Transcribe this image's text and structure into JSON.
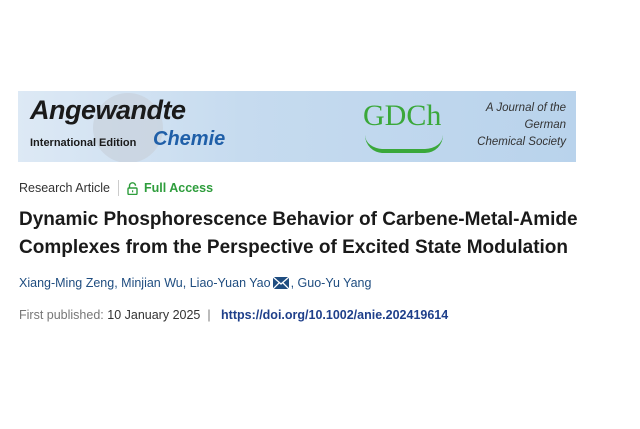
{
  "banner": {
    "journal_name": "Angewandte",
    "edition": "International Edition",
    "journal_sub": "Chemie",
    "society_logo": "GDCh",
    "society_lines": [
      "A Journal of the",
      "German",
      "Chemical Society"
    ]
  },
  "article": {
    "type": "Research Article",
    "access_icon": "lock-open-icon",
    "access": "Full Access",
    "title": "Dynamic Phosphorescence Behavior of Carbene-Metal-Amide Complexes from the Perspective of Excited State Modulation",
    "authors": [
      "Xiang-Ming Zeng,",
      "Minjian Wu,",
      "Liao-Yuan Yao",
      "Guo-Yu Yang"
    ],
    "corresponding_icon": "envelope-icon",
    "published_label": "First published:",
    "published_date": "10 January 2025",
    "separator": "|",
    "doi": "https://doi.org/10.1002/anie.202419614"
  },
  "colors": {
    "access": "#2e9d3c",
    "authors": "#1f4d80",
    "doi": "#1e3f8a"
  }
}
